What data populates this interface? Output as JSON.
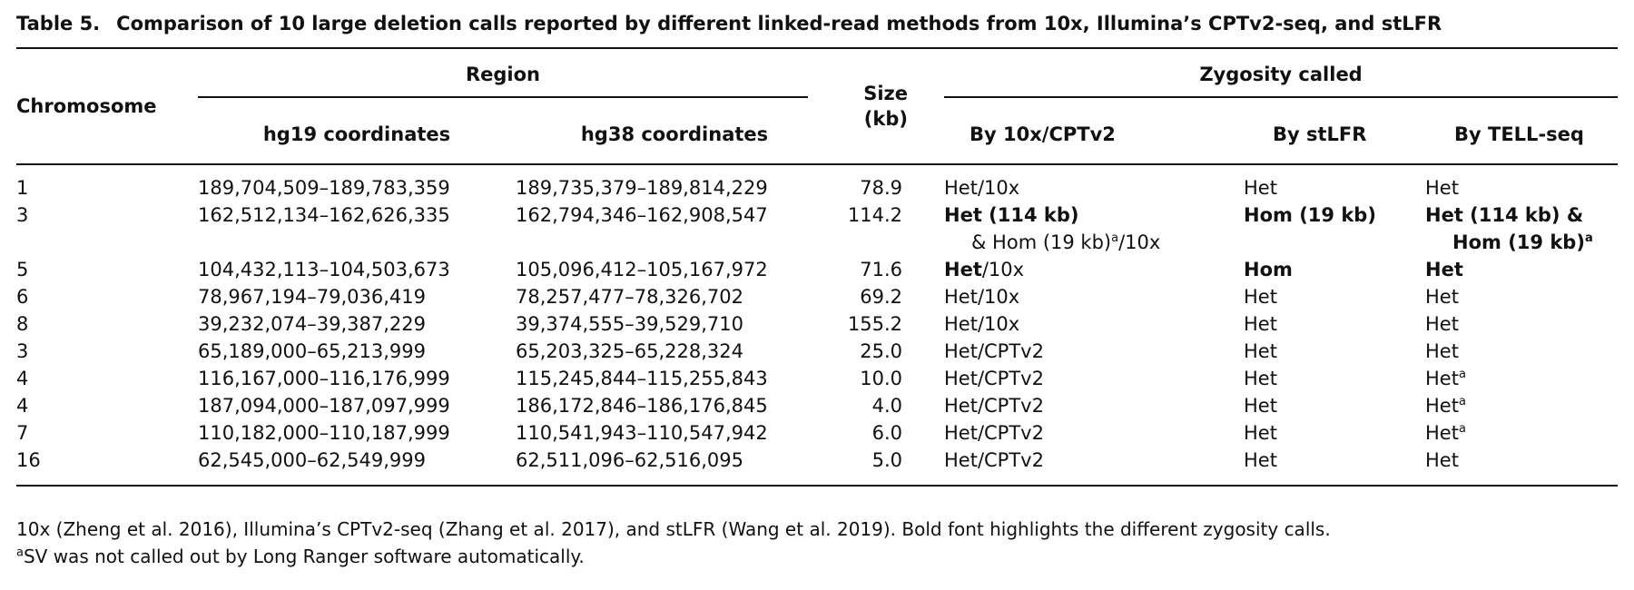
{
  "caption": {
    "label": "Table 5.",
    "text": "Comparison of 10 large deletion calls reported by different linked-read methods from 10x, Illumina’s CPTv2-seq, and stLFR"
  },
  "table": {
    "groups": {
      "region": "Region",
      "size": "Size (kb)",
      "zygosity": "Zygosity called"
    },
    "columns": [
      "Chromosome",
      "hg19 coordinates",
      "hg38 coordinates",
      "By 10x/CPTv2",
      "By stLFR",
      "By TELL-seq"
    ],
    "rows": [
      [
        [
          {
            "text": "1"
          }
        ],
        [
          {
            "text": "189,704,509–189,783,359"
          }
        ],
        [
          {
            "text": "189,735,379–189,814,229"
          }
        ],
        [
          {
            "text": "78.9"
          }
        ],
        [
          {
            "text": "Het/10x"
          }
        ],
        [
          {
            "text": "Het"
          }
        ],
        [
          {
            "text": "Het"
          }
        ]
      ],
      [
        [
          {
            "text": "3"
          }
        ],
        [
          {
            "text": "162,512,134–162,626,335"
          }
        ],
        [
          {
            "text": "162,794,346–162,908,547"
          }
        ],
        [
          {
            "text": "114.2"
          }
        ],
        [
          {
            "text": "Het (114 kb)",
            "bold": true
          },
          {
            "text": "& Hom (19 kb)",
            "br": true
          },
          {
            "text": "a",
            "sup": true
          },
          {
            "text": "/10x"
          }
        ],
        [
          {
            "text": "Hom (19 kb)",
            "bold": true
          }
        ],
        [
          {
            "text": "Het (114 kb) &",
            "bold": true
          },
          {
            "text": "Hom (19 kb)",
            "bold": true,
            "br": true
          },
          {
            "text": "a",
            "sup": true
          }
        ]
      ],
      [
        [
          {
            "text": "5"
          }
        ],
        [
          {
            "text": "104,432,113–104,503,673"
          }
        ],
        [
          {
            "text": "105,096,412–105,167,972"
          }
        ],
        [
          {
            "text": "71.6"
          }
        ],
        [
          {
            "text": "Het",
            "bold": true
          },
          {
            "text": "/10x"
          }
        ],
        [
          {
            "text": "Hom",
            "bold": true
          }
        ],
        [
          {
            "text": "Het",
            "bold": true
          }
        ]
      ],
      [
        [
          {
            "text": "6"
          }
        ],
        [
          {
            "text": "78,967,194–79,036,419"
          }
        ],
        [
          {
            "text": "78,257,477–78,326,702"
          }
        ],
        [
          {
            "text": "69.2"
          }
        ],
        [
          {
            "text": "Het/10x"
          }
        ],
        [
          {
            "text": "Het"
          }
        ],
        [
          {
            "text": "Het"
          }
        ]
      ],
      [
        [
          {
            "text": "8"
          }
        ],
        [
          {
            "text": "39,232,074–39,387,229"
          }
        ],
        [
          {
            "text": "39,374,555–39,529,710"
          }
        ],
        [
          {
            "text": "155.2"
          }
        ],
        [
          {
            "text": "Het/10x"
          }
        ],
        [
          {
            "text": "Het"
          }
        ],
        [
          {
            "text": "Het"
          }
        ]
      ],
      [
        [
          {
            "text": "3"
          }
        ],
        [
          {
            "text": "65,189,000–65,213,999"
          }
        ],
        [
          {
            "text": "65,203,325–65,228,324"
          }
        ],
        [
          {
            "text": "25.0"
          }
        ],
        [
          {
            "text": "Het/CPTv2"
          }
        ],
        [
          {
            "text": "Het"
          }
        ],
        [
          {
            "text": "Het"
          }
        ]
      ],
      [
        [
          {
            "text": "4"
          }
        ],
        [
          {
            "text": "116,167,000–116,176,999"
          }
        ],
        [
          {
            "text": "115,245,844–115,255,843"
          }
        ],
        [
          {
            "text": "10.0"
          }
        ],
        [
          {
            "text": "Het/CPTv2"
          }
        ],
        [
          {
            "text": "Het"
          }
        ],
        [
          {
            "text": "Het"
          },
          {
            "text": "a",
            "sup": true
          }
        ]
      ],
      [
        [
          {
            "text": "4"
          }
        ],
        [
          {
            "text": "187,094,000–187,097,999"
          }
        ],
        [
          {
            "text": "186,172,846–186,176,845"
          }
        ],
        [
          {
            "text": "4.0"
          }
        ],
        [
          {
            "text": "Het/CPTv2"
          }
        ],
        [
          {
            "text": "Het"
          }
        ],
        [
          {
            "text": "Het"
          },
          {
            "text": "a",
            "sup": true
          }
        ]
      ],
      [
        [
          {
            "text": "7"
          }
        ],
        [
          {
            "text": "110,182,000–110,187,999"
          }
        ],
        [
          {
            "text": "110,541,943–110,547,942"
          }
        ],
        [
          {
            "text": "6.0"
          }
        ],
        [
          {
            "text": "Het/CPTv2"
          }
        ],
        [
          {
            "text": "Het"
          }
        ],
        [
          {
            "text": "Het"
          },
          {
            "text": "a",
            "sup": true
          }
        ]
      ],
      [
        [
          {
            "text": "16"
          }
        ],
        [
          {
            "text": "62,545,000–62,549,999"
          }
        ],
        [
          {
            "text": "62,511,096–62,516,095"
          }
        ],
        [
          {
            "text": "5.0"
          }
        ],
        [
          {
            "text": "Het/CPTv2"
          }
        ],
        [
          {
            "text": "Het"
          }
        ],
        [
          {
            "text": "Het"
          }
        ]
      ]
    ]
  },
  "notes": [
    [
      {
        "text": "10x (Zheng et al. 2016), Illumina’s CPTv2-seq (Zhang et al. 2017), and stLFR (Wang et al. 2019). Bold font highlights the different zygosity calls."
      }
    ],
    [
      {
        "text": "a",
        "sup": true
      },
      {
        "text": "SV was not called out by Long Ranger software automatically."
      }
    ]
  ]
}
